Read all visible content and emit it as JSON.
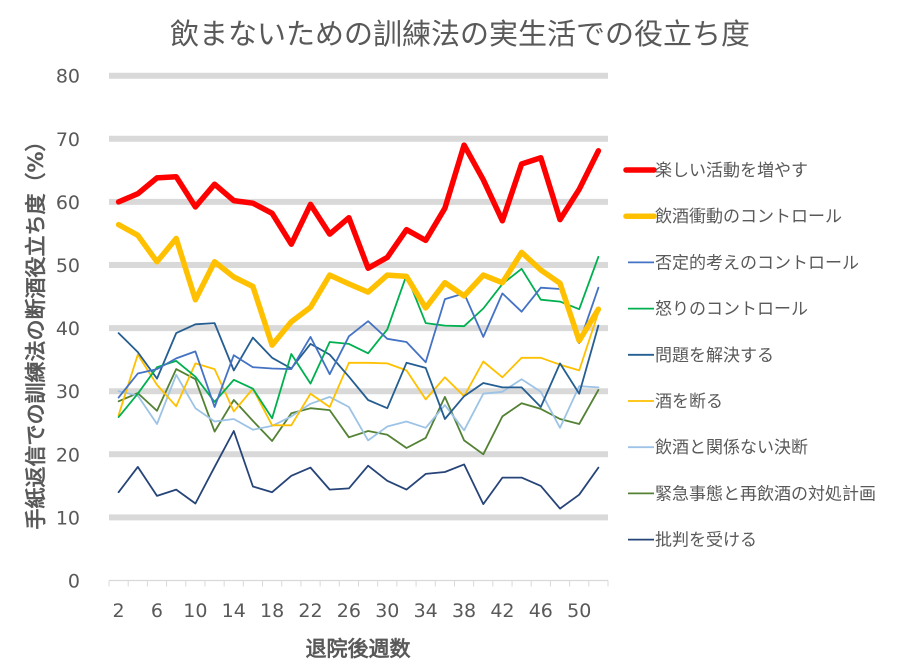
{
  "chart_data": {
    "type": "line",
    "title": "飲まないための訓練法の実生活での役立ち度",
    "xlabel": "退院後週数",
    "ylabel": "手紙返信での訓練法の断酒役立ち度（%）",
    "ylim": [
      0,
      80
    ],
    "yticks": [
      0,
      10,
      20,
      30,
      40,
      50,
      60,
      70,
      80
    ],
    "grid": true,
    "legend_position": "right",
    "x": [
      2,
      4,
      6,
      8,
      10,
      12,
      14,
      16,
      18,
      20,
      22,
      24,
      26,
      28,
      30,
      32,
      34,
      36,
      38,
      40,
      42,
      44,
      46,
      48,
      50,
      52
    ],
    "xtick_labels": [
      "2",
      "6",
      "10",
      "14",
      "18",
      "22",
      "26",
      "30",
      "34",
      "38",
      "42",
      "46",
      "50"
    ],
    "series": [
      {
        "name": "楽しい活動を増やす",
        "color": "#ff0000",
        "emphasis": "thick",
        "values": [
          60,
          61.3,
          63.8,
          64,
          59.2,
          62.8,
          60.2,
          59.8,
          58.2,
          53.3,
          59.6,
          54.9,
          57.5,
          49.5,
          51.2,
          55.6,
          53.9,
          59,
          69,
          63.5,
          57,
          66,
          67,
          57.2,
          62,
          68.1
        ]
      },
      {
        "name": "飲酒衝動のコントロール",
        "color": "#ffc000",
        "emphasis": "thick",
        "values": [
          56.4,
          54.7,
          50.5,
          54.2,
          44.5,
          50.5,
          48.1,
          46.6,
          37.3,
          41,
          43.3,
          48.4,
          47,
          45.7,
          48.4,
          48.2,
          43.2,
          47.2,
          45.1,
          48.4,
          47.2,
          52,
          49.2,
          47.1,
          38,
          43
        ]
      },
      {
        "name": "否定的考えのコントロール",
        "color": "#4472c4",
        "emphasis": "thin",
        "values": [
          29,
          32.8,
          33.5,
          35.2,
          36.3,
          27.5,
          35.7,
          33.8,
          33.6,
          33.5,
          38.6,
          32.7,
          38.7,
          41.1,
          38.3,
          37.8,
          34.6,
          44.6,
          45.5,
          38.6,
          45.5,
          42.6,
          46.4,
          46.2,
          37.6,
          46.4
        ]
      },
      {
        "name": "怒りのコントロール",
        "color": "#00b050",
        "emphasis": "thin",
        "values": [
          25.9,
          29.6,
          33.8,
          34.8,
          32.3,
          28.3,
          31.8,
          30.4,
          25.7,
          35.9,
          31.2,
          37.8,
          37.5,
          36,
          39.8,
          48.4,
          40.8,
          40.4,
          40.3,
          43.1,
          47,
          49.4,
          44.5,
          44.2,
          43,
          51.3
        ]
      },
      {
        "name": "問題を解決する",
        "color": "#255e91",
        "emphasis": "thin",
        "values": [
          39.2,
          36.2,
          32,
          39.2,
          40.6,
          40.8,
          33.3,
          38.5,
          35.3,
          33.6,
          37.5,
          35.8,
          32.3,
          28.6,
          27.3,
          34.5,
          33.7,
          25.6,
          29.2,
          31.3,
          30.6,
          30.6,
          27.5,
          34.4,
          29.6,
          40.4
        ]
      },
      {
        "name": "酒を断る",
        "color": "#ffc000",
        "emphasis": "thin",
        "values": [
          26.2,
          35.8,
          31,
          27.6,
          34.4,
          33.5,
          26.8,
          30.4,
          24.6,
          24.6,
          29.6,
          27.5,
          34.5,
          34.5,
          34.4,
          33.3,
          28.7,
          32.2,
          29.2,
          34.7,
          32.2,
          35.3,
          35.3,
          34.2,
          33.3,
          42.5
        ]
      },
      {
        "name": "飲酒と関係ない決断",
        "color": "#9dc3e6",
        "emphasis": "thin",
        "values": [
          30,
          29.3,
          24.8,
          32.6,
          27.3,
          25.2,
          25.6,
          23.9,
          24.5,
          26,
          28,
          29.1,
          27.5,
          22.2,
          24.4,
          25.2,
          24.2,
          27.8,
          23.8,
          29.6,
          29.9,
          31.9,
          29.9,
          24.2,
          30.8,
          30.6
        ]
      },
      {
        "name": "緊急事態と再飲酒の対処計画",
        "color": "#548235",
        "emphasis": "thin",
        "values": [
          28.4,
          29.7,
          26.9,
          33.5,
          31.9,
          23.6,
          28.6,
          25.3,
          22.1,
          26.5,
          27.3,
          27,
          22.7,
          23.7,
          23.1,
          21,
          22.6,
          29.1,
          22.2,
          20,
          26,
          28.1,
          27.2,
          25.6,
          24.8,
          30.2
        ]
      },
      {
        "name": "批判を受ける",
        "color": "#264478",
        "emphasis": "thin",
        "values": [
          14,
          18,
          13.4,
          14.4,
          12.2,
          18,
          23.7,
          14.9,
          14,
          16.6,
          17.9,
          14.4,
          14.6,
          18.2,
          15.8,
          14.4,
          16.9,
          17.2,
          18.4,
          12.1,
          16.3,
          16.3,
          15,
          11.4,
          13.6,
          17.9
        ]
      }
    ]
  },
  "colors": {
    "text": "#595959",
    "gridline": "#d9d9d9"
  }
}
